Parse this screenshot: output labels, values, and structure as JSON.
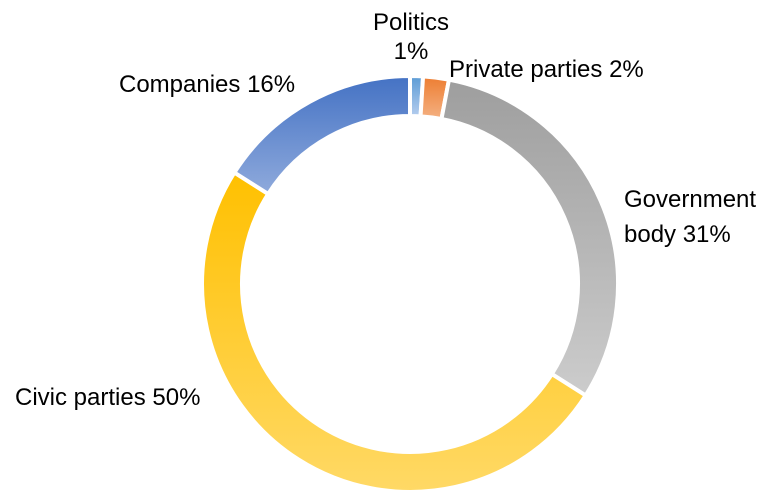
{
  "chart_data": {
    "type": "pie",
    "variant": "donut",
    "title": "",
    "slices": [
      {
        "label": "Politics",
        "percent_label": "1%",
        "value": 1,
        "color_light": "#b5cdee",
        "color_dark": "#5b9bd5"
      },
      {
        "label": "Private parties",
        "percent_label": "2%",
        "value": 2,
        "color_light": "#f4b183",
        "color_dark": "#ed7d31"
      },
      {
        "label": "Government body",
        "percent_label": "31%",
        "value": 31,
        "color_light": "#cccccc",
        "color_dark": "#9e9e9e"
      },
      {
        "label": "Civic parties",
        "percent_label": "50%",
        "value": 50,
        "color_light": "#ffd966",
        "color_dark": "#ffc000"
      },
      {
        "label": "Companies",
        "percent_label": "16%",
        "value": 16,
        "color_light": "#8faadc",
        "color_dark": "#4472c4"
      }
    ],
    "labels": {
      "politics_line1": "Politics",
      "politics_line2": "1%",
      "private": "Private parties 2%",
      "government_line1": "Government",
      "government_line2": "body 31%",
      "civic": "Civic parties 50%",
      "companies": "Companies 16%"
    }
  }
}
